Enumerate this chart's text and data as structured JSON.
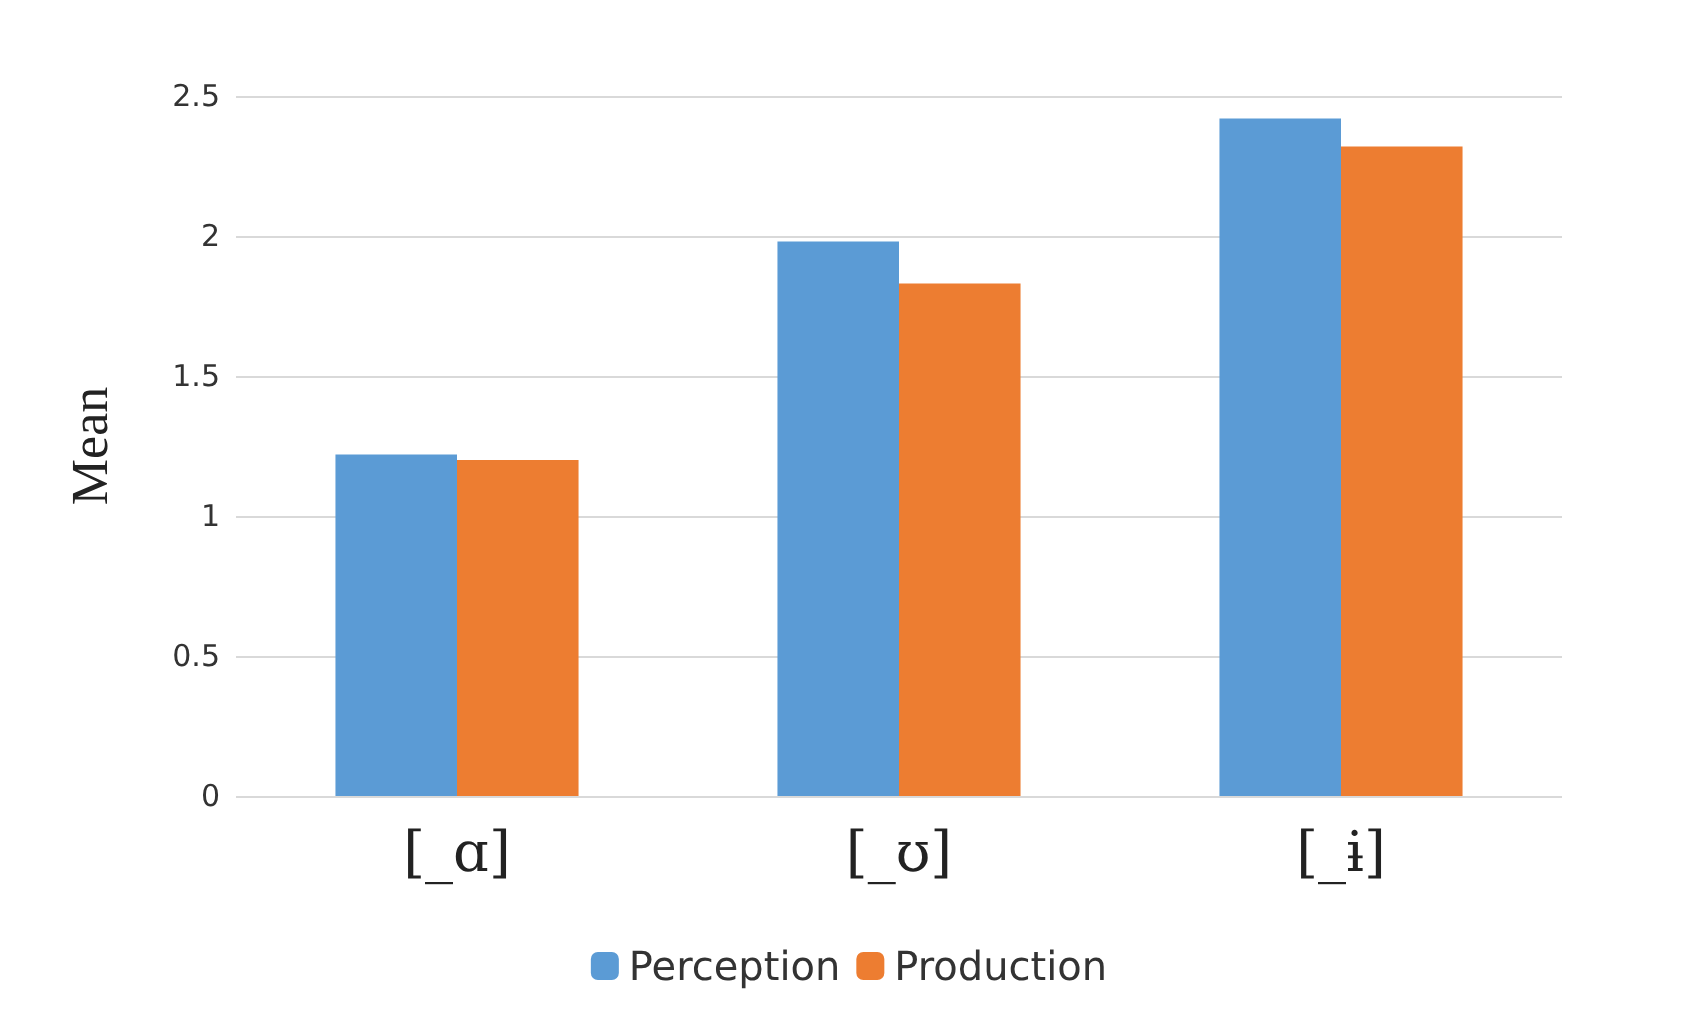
{
  "chart_data": {
    "type": "bar",
    "ylabel": "Mean",
    "categories": [
      "[_ɑ]",
      "[_ʊ]",
      "[_ɨ]"
    ],
    "series": [
      {
        "name": "Perception",
        "color": "#5b9bd5",
        "values": [
          1.22,
          1.98,
          2.42
        ]
      },
      {
        "name": "Production",
        "color": "#ed7d31",
        "values": [
          1.2,
          1.83,
          2.32
        ]
      }
    ],
    "ylim": [
      0,
      2.5
    ],
    "yticks": [
      0,
      0.5,
      1,
      1.5,
      2,
      2.5
    ],
    "grid": "y",
    "legend": "bottom"
  }
}
